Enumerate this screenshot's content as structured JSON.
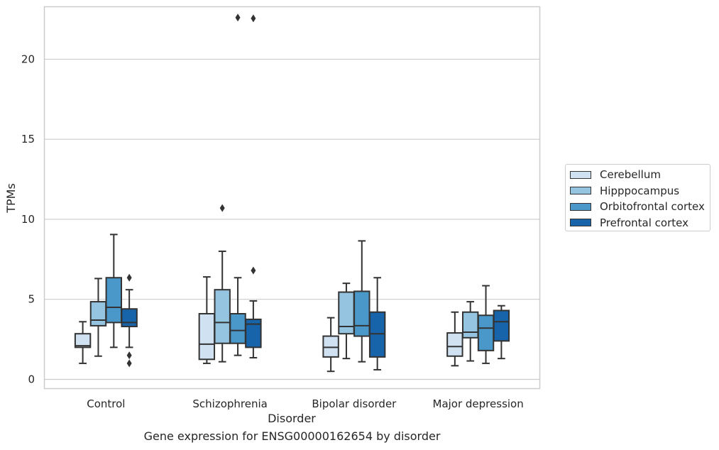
{
  "chart_data": {
    "type": "boxplot",
    "caption": "Gene expression for ENSG00000162654 by disorder",
    "xlabel": "Disorder",
    "ylabel": "TPMs",
    "ylim": [
      -0.6,
      23.3
    ],
    "yticks": [
      0,
      5,
      10,
      15,
      20
    ],
    "grid": "horizontal",
    "legend_position": "right",
    "categories": [
      "Control",
      "Schizophrenia",
      "Bipolar disorder",
      "Major depression"
    ],
    "series": [
      {
        "name": "Cerebellum",
        "color": "#d0e1f2",
        "boxes": [
          {
            "whislo": 1.0,
            "q1": 2.0,
            "med": 2.1,
            "q3": 2.85,
            "whishi": 3.6,
            "fliers": []
          },
          {
            "whislo": 1.0,
            "q1": 1.25,
            "med": 2.2,
            "q3": 4.1,
            "whishi": 6.4,
            "fliers": []
          },
          {
            "whislo": 0.5,
            "q1": 1.4,
            "med": 2.0,
            "q3": 2.7,
            "whishi": 3.85,
            "fliers": []
          },
          {
            "whislo": 0.85,
            "q1": 1.45,
            "med": 2.05,
            "q3": 2.9,
            "whishi": 4.2,
            "fliers": []
          }
        ]
      },
      {
        "name": "Hipppocampus",
        "color": "#94c4df",
        "boxes": [
          {
            "whislo": 1.45,
            "q1": 3.35,
            "med": 3.7,
            "q3": 4.85,
            "whishi": 6.3,
            "fliers": []
          },
          {
            "whislo": 1.1,
            "q1": 2.25,
            "med": 3.55,
            "q3": 5.6,
            "whishi": 8.0,
            "fliers": [
              10.7
            ]
          },
          {
            "whislo": 1.3,
            "q1": 2.85,
            "med": 3.3,
            "q3": 5.45,
            "whishi": 6.0,
            "fliers": []
          },
          {
            "whislo": 1.15,
            "q1": 2.6,
            "med": 2.95,
            "q3": 4.2,
            "whishi": 4.85,
            "fliers": []
          }
        ]
      },
      {
        "name": "Orbitofrontal cortex",
        "color": "#4a98c9",
        "boxes": [
          {
            "whislo": 2.0,
            "q1": 3.55,
            "med": 4.5,
            "q3": 6.35,
            "whishi": 9.05,
            "fliers": []
          },
          {
            "whislo": 1.5,
            "q1": 2.25,
            "med": 3.05,
            "q3": 4.1,
            "whishi": 6.35,
            "fliers": [
              22.6
            ]
          },
          {
            "whislo": 1.1,
            "q1": 2.7,
            "med": 3.35,
            "q3": 5.5,
            "whishi": 8.65,
            "fliers": []
          },
          {
            "whislo": 1.0,
            "q1": 1.8,
            "med": 3.2,
            "q3": 4.0,
            "whishi": 5.85,
            "fliers": []
          }
        ]
      },
      {
        "name": "Prefrontal cortex",
        "color": "#1764ab",
        "boxes": [
          {
            "whislo": 2.0,
            "q1": 3.3,
            "med": 3.55,
            "q3": 4.4,
            "whishi": 5.6,
            "fliers": [
              6.35,
              1.5,
              1.0
            ]
          },
          {
            "whislo": 1.35,
            "q1": 2.0,
            "med": 3.45,
            "q3": 3.75,
            "whishi": 4.9,
            "fliers": [
              6.8,
              22.55
            ]
          },
          {
            "whislo": 0.6,
            "q1": 1.4,
            "med": 2.85,
            "q3": 4.2,
            "whishi": 6.35,
            "fliers": []
          },
          {
            "whislo": 1.3,
            "q1": 2.4,
            "med": 3.6,
            "q3": 4.3,
            "whishi": 4.6,
            "fliers": []
          }
        ]
      }
    ]
  }
}
